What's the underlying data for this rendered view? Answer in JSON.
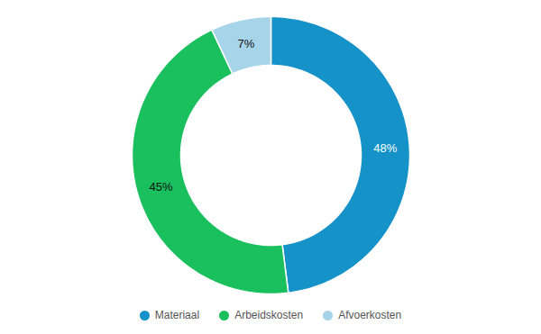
{
  "chart_data": {
    "type": "pie",
    "categories": [
      "Materiaal",
      "Arbeidskosten",
      "Afvoerkosten"
    ],
    "values": [
      48,
      45,
      7
    ],
    "value_labels": [
      "48%",
      "45%",
      "7%"
    ],
    "colors": [
      "#1592c8",
      "#1abf5e",
      "#a6d4e9"
    ],
    "data_labels": true,
    "legend": "bottom"
  }
}
